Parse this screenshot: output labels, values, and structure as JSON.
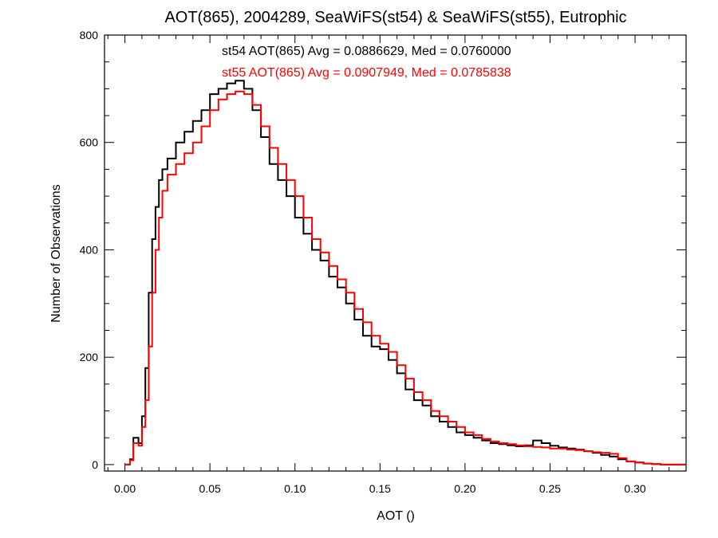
{
  "chart_data": {
    "type": "line",
    "title": "AOT(865), 2004289, SeaWiFS(st54) & SeaWiFS(st55), Eutrophic",
    "xlabel": "AOT ()",
    "ylabel": "Number of Observations",
    "xlim": [
      -0.012,
      0.33
    ],
    "ylim": [
      -12,
      800
    ],
    "xticks": [
      0.0,
      0.05,
      0.1,
      0.15,
      0.2,
      0.25,
      0.3
    ],
    "xtick_labels": [
      "0.00",
      "0.05",
      "0.10",
      "0.15",
      "0.20",
      "0.25",
      "0.30"
    ],
    "yticks": [
      0,
      200,
      400,
      600,
      800
    ],
    "ytick_labels": [
      "0",
      "200",
      "400",
      "600",
      "800"
    ],
    "grid": false,
    "step": "histogram",
    "annotations": [
      {
        "text": "st54 AOT(865) Avg = 0.0886629, Med = 0.0760000",
        "color": "#000000"
      },
      {
        "text": "st55 AOT(865) Avg = 0.0907949, Med = 0.0785838",
        "color": "#ff0000"
      }
    ],
    "series": [
      {
        "color": "#000000",
        "x": [
          0.0,
          0.003,
          0.005,
          0.008,
          0.01,
          0.012,
          0.014,
          0.016,
          0.018,
          0.02,
          0.022,
          0.025,
          0.03,
          0.035,
          0.04,
          0.045,
          0.05,
          0.055,
          0.06,
          0.065,
          0.07,
          0.075,
          0.08,
          0.085,
          0.09,
          0.095,
          0.1,
          0.105,
          0.11,
          0.115,
          0.12,
          0.125,
          0.13,
          0.135,
          0.14,
          0.145,
          0.15,
          0.155,
          0.16,
          0.165,
          0.17,
          0.175,
          0.18,
          0.185,
          0.19,
          0.195,
          0.2,
          0.205,
          0.21,
          0.215,
          0.22,
          0.225,
          0.23,
          0.235,
          0.24,
          0.245,
          0.25,
          0.255,
          0.26,
          0.265,
          0.27,
          0.275,
          0.28,
          0.285,
          0.29,
          0.295,
          0.3,
          0.305,
          0.31,
          0.315,
          0.32,
          0.33
        ],
        "y": [
          0,
          10,
          50,
          40,
          90,
          180,
          320,
          420,
          480,
          530,
          550,
          570,
          600,
          620,
          640,
          660,
          690,
          700,
          710,
          715,
          700,
          660,
          610,
          560,
          530,
          500,
          460,
          430,
          400,
          380,
          350,
          330,
          300,
          270,
          240,
          220,
          215,
          195,
          170,
          140,
          120,
          110,
          90,
          80,
          70,
          60,
          55,
          50,
          45,
          40,
          38,
          36,
          34,
          36,
          45,
          40,
          35,
          32,
          30,
          28,
          25,
          22,
          18,
          15,
          10,
          6,
          4,
          2,
          1,
          0,
          0,
          0
        ]
      },
      {
        "color": "#ff0000",
        "x": [
          0.0,
          0.003,
          0.005,
          0.008,
          0.01,
          0.012,
          0.014,
          0.016,
          0.018,
          0.02,
          0.022,
          0.025,
          0.03,
          0.035,
          0.04,
          0.045,
          0.05,
          0.055,
          0.06,
          0.065,
          0.07,
          0.075,
          0.08,
          0.085,
          0.09,
          0.095,
          0.1,
          0.105,
          0.11,
          0.115,
          0.12,
          0.125,
          0.13,
          0.135,
          0.14,
          0.145,
          0.15,
          0.155,
          0.16,
          0.165,
          0.17,
          0.175,
          0.18,
          0.185,
          0.19,
          0.195,
          0.2,
          0.205,
          0.21,
          0.215,
          0.22,
          0.225,
          0.23,
          0.235,
          0.24,
          0.245,
          0.25,
          0.255,
          0.26,
          0.265,
          0.27,
          0.275,
          0.28,
          0.285,
          0.29,
          0.295,
          0.3,
          0.305,
          0.31,
          0.315,
          0.32,
          0.33
        ],
        "y": [
          0,
          8,
          40,
          35,
          70,
          120,
          220,
          320,
          400,
          460,
          510,
          540,
          560,
          580,
          600,
          630,
          660,
          680,
          690,
          695,
          690,
          670,
          630,
          590,
          560,
          530,
          500,
          460,
          420,
          395,
          370,
          345,
          320,
          290,
          265,
          240,
          225,
          210,
          185,
          160,
          135,
          120,
          100,
          90,
          80,
          70,
          60,
          55,
          48,
          43,
          40,
          38,
          36,
          34,
          33,
          32,
          30,
          30,
          28,
          27,
          25,
          23,
          22,
          20,
          12,
          6,
          4,
          2,
          1,
          0,
          0,
          0
        ]
      }
    ]
  }
}
